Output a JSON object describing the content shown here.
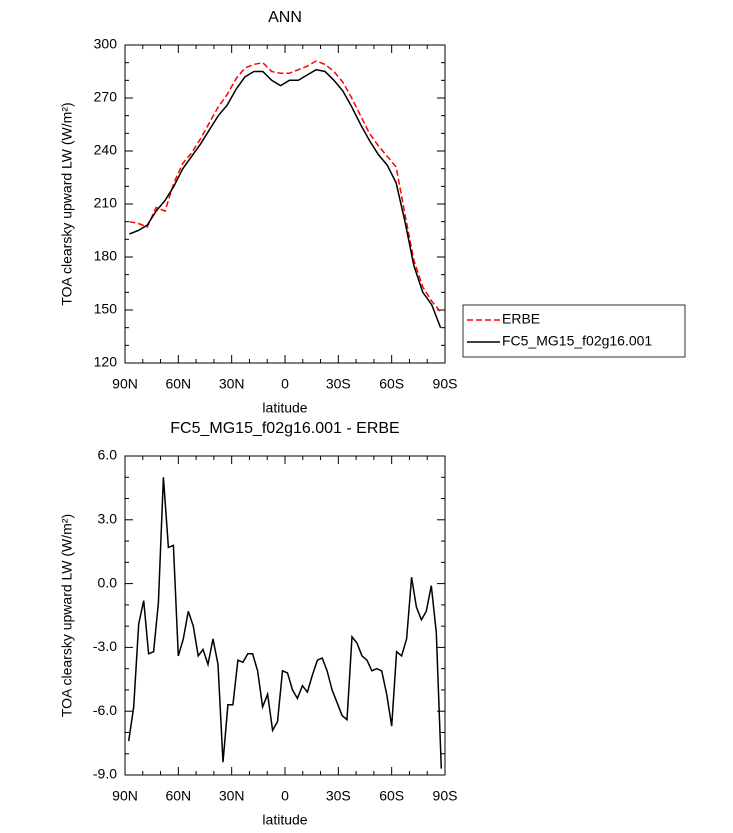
{
  "chart_data": [
    {
      "type": "line",
      "title": "ANN",
      "xlabel": "latitude",
      "ylabel": "TOA clearsky upward LW (W/m²)",
      "x": [
        87.5,
        82.5,
        77.5,
        72.5,
        67.5,
        62.5,
        57.5,
        52.5,
        47.5,
        42.5,
        37.5,
        32.5,
        27.5,
        22.5,
        17.5,
        12.5,
        7.5,
        2.5,
        -2.5,
        -7.5,
        -12.5,
        -17.5,
        -22.5,
        -27.5,
        -32.5,
        -37.5,
        -42.5,
        -47.5,
        -52.5,
        -57.5,
        -62.5,
        -67.5,
        -72.5,
        -77.5,
        -82.5,
        -87.5
      ],
      "series": [
        {
          "name": "ERBE",
          "color": "#ff0000",
          "style": "dashed",
          "values": [
            200,
            199,
            197,
            208,
            206,
            222,
            233,
            239,
            247,
            256,
            265,
            272,
            281,
            287,
            289,
            290,
            285,
            284,
            284,
            286,
            288,
            291,
            289,
            285,
            279,
            270,
            260,
            250,
            243,
            237,
            231,
            204,
            178,
            163,
            155,
            149
          ]
        },
        {
          "name": "FC5_MG15_f02g16.001",
          "color": "#000000",
          "style": "solid",
          "values": [
            193,
            195,
            198,
            206,
            212,
            220,
            230,
            237,
            244,
            252,
            260,
            266,
            275,
            282,
            285,
            285,
            280,
            277,
            280,
            280,
            283,
            286,
            285,
            280,
            274,
            265,
            255,
            246,
            238,
            232,
            222,
            200,
            175,
            160,
            153,
            140
          ]
        }
      ],
      "xlim": [
        90,
        -90
      ],
      "xticks": [
        {
          "value": 90,
          "label": "90N"
        },
        {
          "value": 60,
          "label": "60N"
        },
        {
          "value": 30,
          "label": "30N"
        },
        0,
        {
          "value": -30,
          "label": "30S"
        },
        {
          "value": -60,
          "label": "60S"
        },
        {
          "value": -90,
          "label": "90S"
        }
      ],
      "ylim": [
        120,
        300
      ],
      "yticks": [
        120,
        150,
        180,
        210,
        240,
        270,
        300
      ]
    },
    {
      "type": "line",
      "title": "FC5_MG15_f02g16.001 - ERBE",
      "xlabel": "latitude",
      "ylabel": "TOA clearsky upward LW (W/m²)",
      "x": [
        87.9,
        85.1,
        82.3,
        79.5,
        76.7,
        73.9,
        71.2,
        68.4,
        65.6,
        62.8,
        60.0,
        57.2,
        54.4,
        51.6,
        48.8,
        46.1,
        43.3,
        40.5,
        37.7,
        34.9,
        32.1,
        29.3,
        26.5,
        23.7,
        20.9,
        18.2,
        15.4,
        12.6,
        9.8,
        7.0,
        4.2,
        1.4,
        -1.4,
        -4.2,
        -7.0,
        -9.8,
        -12.6,
        -15.4,
        -18.2,
        -20.9,
        -23.7,
        -26.5,
        -29.3,
        -32.1,
        -34.9,
        -37.7,
        -40.5,
        -43.3,
        -46.1,
        -48.8,
        -51.6,
        -54.4,
        -57.2,
        -60.0,
        -62.8,
        -65.6,
        -68.4,
        -71.2,
        -73.9,
        -76.7,
        -79.5,
        -82.3,
        -85.1,
        -87.9
      ],
      "color": "#000000",
      "values": [
        -7.4,
        -5.8,
        -1.9,
        -0.8,
        -3.3,
        -3.2,
        -0.9,
        5.0,
        1.7,
        1.8,
        -3.4,
        -2.6,
        -1.3,
        -2.0,
        -3.4,
        -3.1,
        -3.8,
        -2.6,
        -3.8,
        -8.4,
        -5.7,
        -5.7,
        -3.6,
        -3.7,
        -3.3,
        -3.3,
        -4.1,
        -5.8,
        -5.2,
        -6.9,
        -6.5,
        -4.1,
        -4.2,
        -5.0,
        -5.4,
        -4.8,
        -5.1,
        -4.3,
        -3.6,
        -3.5,
        -4.1,
        -5.0,
        -5.6,
        -6.2,
        -6.4,
        -2.5,
        -2.8,
        -3.4,
        -3.6,
        -4.1,
        -4.0,
        -4.1,
        -5.2,
        -6.7,
        -3.2,
        -3.4,
        -2.6,
        0.3,
        -1.1,
        -1.7,
        -1.3,
        -0.1,
        -2.3,
        -8.7
      ],
      "xlim": [
        90,
        -90
      ],
      "xticks": [
        {
          "value": 90,
          "label": "90N"
        },
        {
          "value": 60,
          "label": "60N"
        },
        {
          "value": 30,
          "label": "30N"
        },
        0,
        {
          "value": -30,
          "label": "30S"
        },
        {
          "value": -60,
          "label": "60S"
        },
        {
          "value": -90,
          "label": "90S"
        }
      ],
      "ylim": [
        -9,
        6
      ],
      "yticks": [
        {
          "value": -9,
          "label": "-9.0"
        },
        {
          "value": -6,
          "label": "-6.0"
        },
        {
          "value": -3,
          "label": "-3.0"
        },
        {
          "value": 0,
          "label": "0.0"
        },
        {
          "value": 3,
          "label": "3.0"
        },
        {
          "value": 6,
          "label": "6.0"
        }
      ]
    }
  ]
}
